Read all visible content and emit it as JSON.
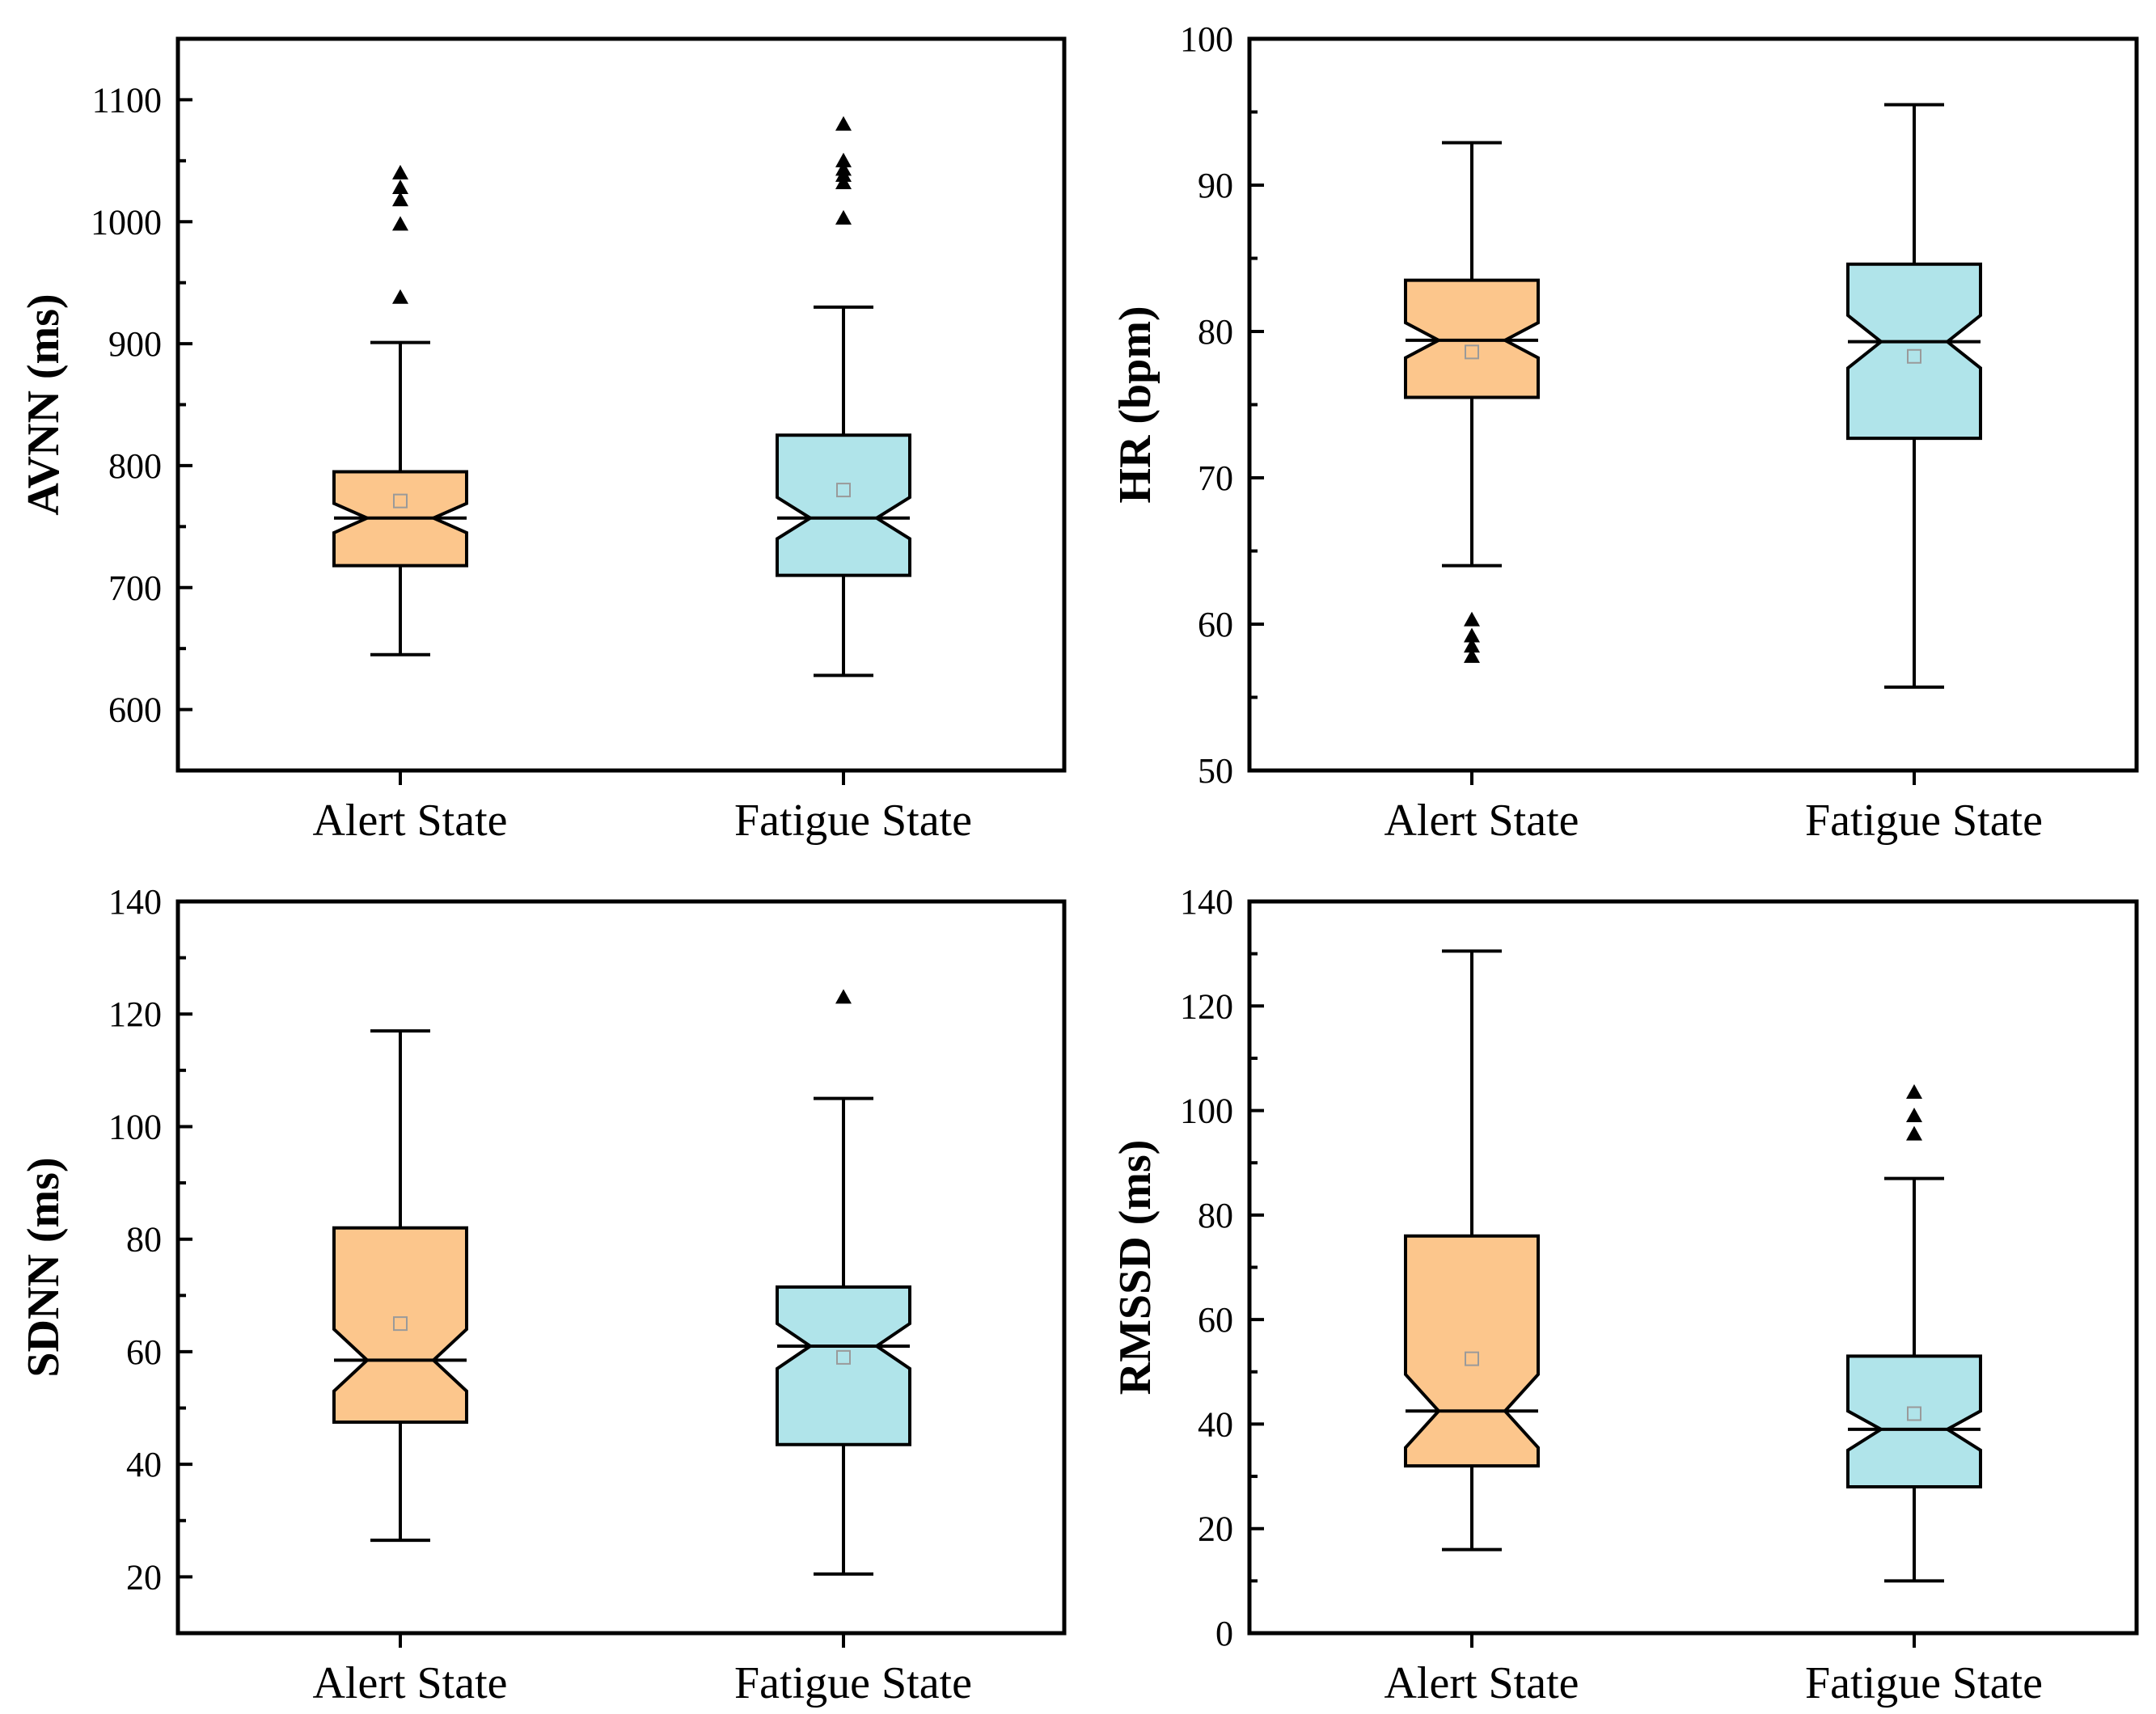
{
  "colors": {
    "alert_fill": "#fcc68c",
    "fatigue_fill": "#b0e4ea",
    "stroke": "#000000",
    "mean_marker": "#9a9a9a"
  },
  "chart_data": [
    {
      "type": "boxplot",
      "id": "avnn",
      "ylabel": "AVNN (ms)",
      "ylim": [
        550,
        1150
      ],
      "yticks": [
        600,
        700,
        800,
        900,
        1000,
        1100
      ],
      "minor_step": 50,
      "categories": [
        "Alert State",
        "Fatigue State"
      ],
      "boxes": [
        {
          "category": "Alert State",
          "q1": 718,
          "median": 757,
          "q3": 795,
          "whisker_low": 645,
          "whisker_high": 901,
          "mean": 771,
          "notch_low": 745,
          "notch_high": 769,
          "outliers": [
            938,
            998,
            1018,
            1028,
            1040
          ]
        },
        {
          "category": "Fatigue State",
          "q1": 710,
          "median": 757,
          "q3": 825,
          "whisker_low": 628,
          "whisker_high": 930,
          "mean": 780,
          "notch_low": 740,
          "notch_high": 774,
          "outliers": [
            1003,
            1032,
            1038,
            1043,
            1050,
            1080
          ]
        }
      ]
    },
    {
      "type": "boxplot",
      "id": "hr",
      "ylabel": "HR (bpm)",
      "ylim": [
        50,
        100
      ],
      "yticks": [
        50,
        60,
        70,
        80,
        90,
        100
      ],
      "minor_step": 5,
      "categories": [
        "Alert State",
        "Fatigue State"
      ],
      "boxes": [
        {
          "category": "Alert State",
          "q1": 75.5,
          "median": 79.4,
          "q3": 83.5,
          "whisker_low": 64.0,
          "whisker_high": 92.9,
          "mean": 78.6,
          "notch_low": 78.2,
          "notch_high": 80.6,
          "outliers": [
            57.8,
            58.5,
            59.2,
            60.3
          ]
        },
        {
          "category": "Fatigue State",
          "q1": 72.7,
          "median": 79.3,
          "q3": 84.6,
          "whisker_low": 55.7,
          "whisker_high": 95.5,
          "mean": 78.3,
          "notch_low": 77.5,
          "notch_high": 81.1,
          "outliers": []
        }
      ]
    },
    {
      "type": "boxplot",
      "id": "sdnn",
      "ylabel": "SDNN (ms)",
      "ylim": [
        10,
        140
      ],
      "yticks": [
        20,
        40,
        60,
        80,
        100,
        120,
        140
      ],
      "minor_step": 10,
      "categories": [
        "Alert State",
        "Fatigue State"
      ],
      "boxes": [
        {
          "category": "Alert State",
          "q1": 47.5,
          "median": 58.5,
          "q3": 82.0,
          "whisker_low": 26.5,
          "whisker_high": 117.0,
          "mean": 65.0,
          "notch_low": 53.0,
          "notch_high": 64.0,
          "outliers": []
        },
        {
          "category": "Fatigue State",
          "q1": 43.5,
          "median": 61.0,
          "q3": 71.5,
          "whisker_low": 20.5,
          "whisker_high": 105.0,
          "mean": 59.0,
          "notch_low": 57.0,
          "notch_high": 65.0,
          "outliers": [
            123
          ]
        }
      ]
    },
    {
      "type": "boxplot",
      "id": "rmssd",
      "ylabel": "RMSSD (ms)",
      "ylim": [
        0,
        140
      ],
      "yticks": [
        0,
        20,
        40,
        60,
        80,
        100,
        120,
        140
      ],
      "minor_step": 10,
      "categories": [
        "Alert State",
        "Fatigue State"
      ],
      "boxes": [
        {
          "category": "Alert State",
          "q1": 32.0,
          "median": 42.5,
          "q3": 76.0,
          "whisker_low": 16.0,
          "whisker_high": 130.5,
          "mean": 52.5,
          "notch_low": 35.5,
          "notch_high": 49.5,
          "outliers": []
        },
        {
          "category": "Fatigue State",
          "q1": 28.0,
          "median": 39.0,
          "q3": 53.0,
          "whisker_low": 10.0,
          "whisker_high": 87.0,
          "mean": 42.0,
          "notch_low": 35.0,
          "notch_high": 42.5,
          "outliers": [
            95.5,
            99.0,
            103.5
          ]
        }
      ]
    }
  ]
}
